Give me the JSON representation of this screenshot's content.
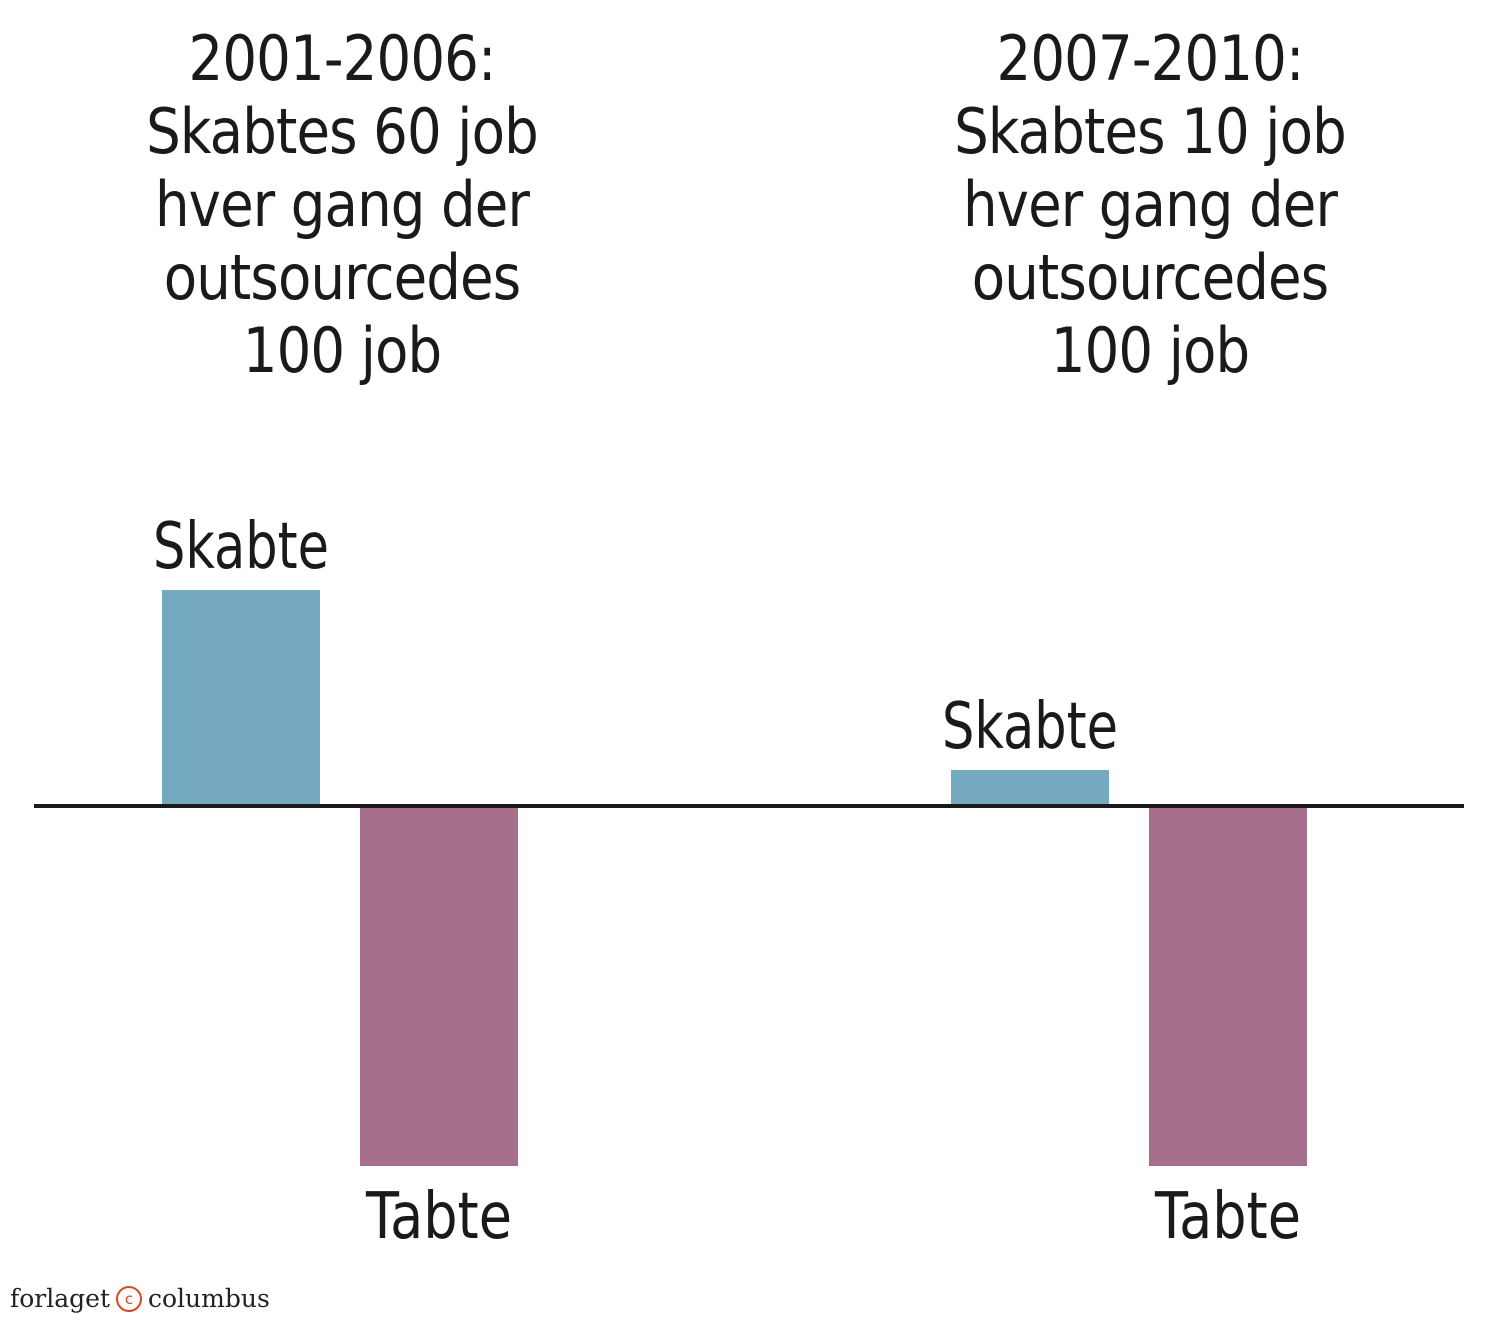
{
  "chart_data": {
    "type": "bar",
    "groups": [
      {
        "title_lines": [
          "2001-2006:",
          "Skabtes 60 job",
          "hver gang der",
          "outsourcedes",
          "100 job"
        ],
        "bars": [
          {
            "label": "Skabte",
            "value": 60,
            "color": "#74a9c0"
          },
          {
            "label": "Tabte",
            "value": -100,
            "color": "#a6708c"
          }
        ]
      },
      {
        "title_lines": [
          "2007-2010:",
          "Skabtes 10 job",
          "hver gang der",
          "outsourcedes",
          "100 job"
        ],
        "bars": [
          {
            "label": "Skabte",
            "value": 10,
            "color": "#74a9c0"
          },
          {
            "label": "Tabte",
            "value": -100,
            "color": "#a6708c"
          }
        ]
      }
    ],
    "ylim": [
      -100,
      60
    ],
    "baseline": 0
  },
  "footer": {
    "left_text": "forlaget",
    "icon": "copyright-icon",
    "icon_glyph": "c",
    "right_text": "columbus"
  }
}
